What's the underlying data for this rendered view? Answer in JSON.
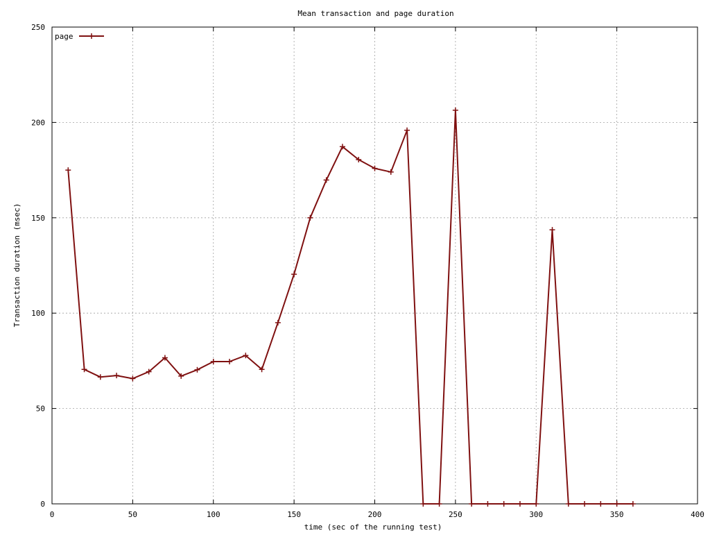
{
  "chart_data": {
    "type": "line",
    "title": "Mean transaction and page duration",
    "xlabel": "time (sec of the running test)",
    "ylabel": "Transaction duration (msec)",
    "xlim": [
      0,
      400
    ],
    "ylim": [
      0,
      250
    ],
    "xticks": [
      0,
      50,
      100,
      150,
      200,
      250,
      300,
      350,
      400
    ],
    "yticks": [
      0,
      50,
      100,
      150,
      200,
      250
    ],
    "grid": true,
    "legend_position": "top-left",
    "series": [
      {
        "name": "page",
        "color": "#7f1010",
        "marker": "plus",
        "x": [
          10,
          20,
          30,
          40,
          50,
          60,
          70,
          80,
          90,
          100,
          110,
          120,
          130,
          140,
          150,
          160,
          170,
          180,
          190,
          200,
          210,
          220,
          230,
          240,
          250,
          260,
          270,
          280,
          290,
          300,
          310,
          320,
          330,
          340,
          350,
          360
        ],
        "y": [
          175,
          70.5,
          66.5,
          67.3,
          65.7,
          69.3,
          76.6,
          67,
          70.3,
          74.6,
          74.6,
          77.8,
          70.5,
          95,
          120.4,
          150,
          169.8,
          187.3,
          180.5,
          175.9,
          174,
          195.9,
          0,
          0,
          206.4,
          0,
          0,
          0,
          0,
          0,
          143.7,
          0,
          0,
          0,
          0,
          0
        ]
      }
    ]
  }
}
